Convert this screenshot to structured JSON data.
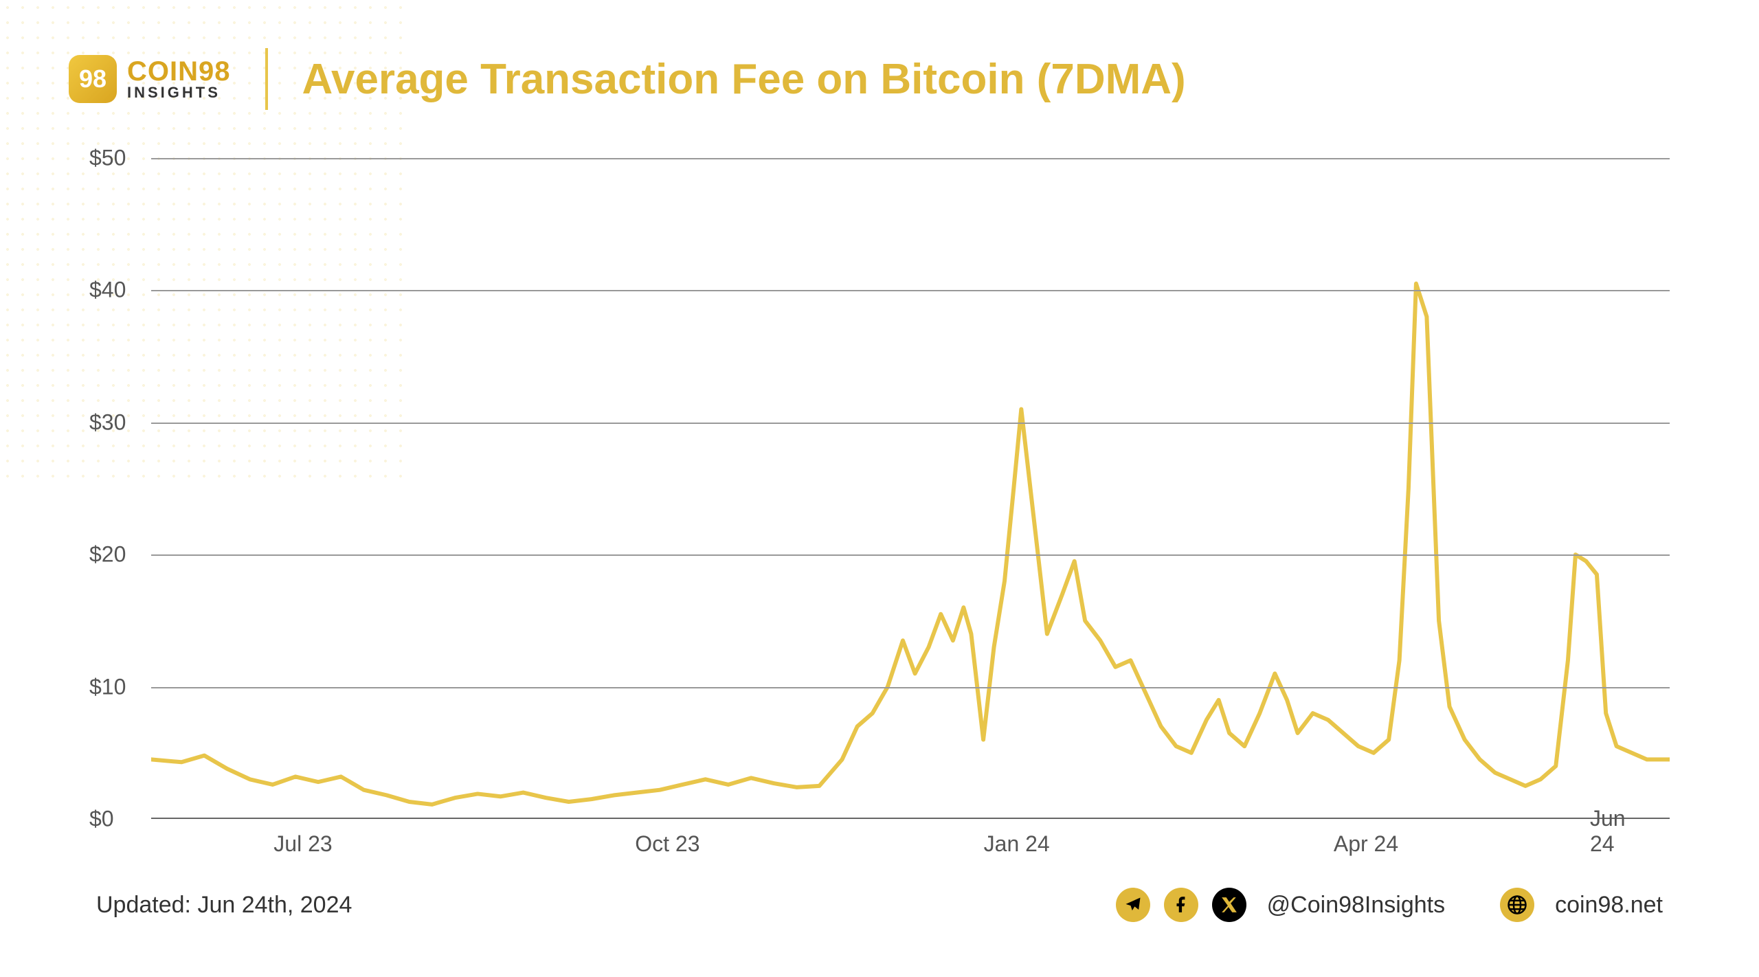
{
  "brand": {
    "logo_glyph": "98",
    "name": "COIN98",
    "sub": "INSIGHTS"
  },
  "chart": {
    "title": "Average Transaction Fee on Bitcoin (7DMA)",
    "type": "line",
    "line_color": "#e8c54a",
    "line_width": 6,
    "grid_color": "#999999",
    "axis_color": "#666666",
    "background": "#ffffff",
    "ylim": [
      0,
      50
    ],
    "ytick_step": 10,
    "yticks": [
      "$0",
      "$10",
      "$20",
      "$30",
      "$40",
      "$50"
    ],
    "xticks": [
      {
        "label": "Jul 23",
        "pos": 0.1
      },
      {
        "label": "Oct 23",
        "pos": 0.34
      },
      {
        "label": "Jan 24",
        "pos": 0.57
      },
      {
        "label": "Apr 24",
        "pos": 0.8
      },
      {
        "label": "Jun 24",
        "pos": 0.965
      }
    ],
    "series": [
      {
        "x": 0.0,
        "y": 4.5
      },
      {
        "x": 0.02,
        "y": 4.3
      },
      {
        "x": 0.035,
        "y": 4.8
      },
      {
        "x": 0.05,
        "y": 3.8
      },
      {
        "x": 0.065,
        "y": 3.0
      },
      {
        "x": 0.08,
        "y": 2.6
      },
      {
        "x": 0.095,
        "y": 3.2
      },
      {
        "x": 0.11,
        "y": 2.8
      },
      {
        "x": 0.125,
        "y": 3.2
      },
      {
        "x": 0.14,
        "y": 2.2
      },
      {
        "x": 0.155,
        "y": 1.8
      },
      {
        "x": 0.17,
        "y": 1.3
      },
      {
        "x": 0.185,
        "y": 1.1
      },
      {
        "x": 0.2,
        "y": 1.6
      },
      {
        "x": 0.215,
        "y": 1.9
      },
      {
        "x": 0.23,
        "y": 1.7
      },
      {
        "x": 0.245,
        "y": 2.0
      },
      {
        "x": 0.26,
        "y": 1.6
      },
      {
        "x": 0.275,
        "y": 1.3
      },
      {
        "x": 0.29,
        "y": 1.5
      },
      {
        "x": 0.305,
        "y": 1.8
      },
      {
        "x": 0.32,
        "y": 2.0
      },
      {
        "x": 0.335,
        "y": 2.2
      },
      {
        "x": 0.35,
        "y": 2.6
      },
      {
        "x": 0.365,
        "y": 3.0
      },
      {
        "x": 0.38,
        "y": 2.6
      },
      {
        "x": 0.395,
        "y": 3.1
      },
      {
        "x": 0.41,
        "y": 2.7
      },
      {
        "x": 0.425,
        "y": 2.4
      },
      {
        "x": 0.44,
        "y": 2.5
      },
      {
        "x": 0.455,
        "y": 4.5
      },
      {
        "x": 0.465,
        "y": 7.0
      },
      {
        "x": 0.475,
        "y": 8.0
      },
      {
        "x": 0.485,
        "y": 10.0
      },
      {
        "x": 0.495,
        "y": 13.5
      },
      {
        "x": 0.503,
        "y": 11.0
      },
      {
        "x": 0.512,
        "y": 13.0
      },
      {
        "x": 0.52,
        "y": 15.5
      },
      {
        "x": 0.528,
        "y": 13.5
      },
      {
        "x": 0.535,
        "y": 16.0
      },
      {
        "x": 0.54,
        "y": 14.0
      },
      {
        "x": 0.548,
        "y": 6.0
      },
      {
        "x": 0.555,
        "y": 13.0
      },
      {
        "x": 0.562,
        "y": 18.0
      },
      {
        "x": 0.568,
        "y": 25.0
      },
      {
        "x": 0.573,
        "y": 31.0
      },
      {
        "x": 0.58,
        "y": 24.0
      },
      {
        "x": 0.59,
        "y": 14.0
      },
      {
        "x": 0.6,
        "y": 17.0
      },
      {
        "x": 0.608,
        "y": 19.5
      },
      {
        "x": 0.615,
        "y": 15.0
      },
      {
        "x": 0.625,
        "y": 13.5
      },
      {
        "x": 0.635,
        "y": 11.5
      },
      {
        "x": 0.645,
        "y": 12.0
      },
      {
        "x": 0.655,
        "y": 9.5
      },
      {
        "x": 0.665,
        "y": 7.0
      },
      {
        "x": 0.675,
        "y": 5.5
      },
      {
        "x": 0.685,
        "y": 5.0
      },
      {
        "x": 0.695,
        "y": 7.5
      },
      {
        "x": 0.703,
        "y": 9.0
      },
      {
        "x": 0.71,
        "y": 6.5
      },
      {
        "x": 0.72,
        "y": 5.5
      },
      {
        "x": 0.73,
        "y": 8.0
      },
      {
        "x": 0.74,
        "y": 11.0
      },
      {
        "x": 0.748,
        "y": 9.0
      },
      {
        "x": 0.755,
        "y": 6.5
      },
      {
        "x": 0.765,
        "y": 8.0
      },
      {
        "x": 0.775,
        "y": 7.5
      },
      {
        "x": 0.785,
        "y": 6.5
      },
      {
        "x": 0.795,
        "y": 5.5
      },
      {
        "x": 0.805,
        "y": 5.0
      },
      {
        "x": 0.815,
        "y": 6.0
      },
      {
        "x": 0.822,
        "y": 12.0
      },
      {
        "x": 0.828,
        "y": 25.0
      },
      {
        "x": 0.833,
        "y": 40.5
      },
      {
        "x": 0.84,
        "y": 38.0
      },
      {
        "x": 0.848,
        "y": 15.0
      },
      {
        "x": 0.855,
        "y": 8.5
      },
      {
        "x": 0.865,
        "y": 6.0
      },
      {
        "x": 0.875,
        "y": 4.5
      },
      {
        "x": 0.885,
        "y": 3.5
      },
      {
        "x": 0.895,
        "y": 3.0
      },
      {
        "x": 0.905,
        "y": 2.5
      },
      {
        "x": 0.915,
        "y": 3.0
      },
      {
        "x": 0.925,
        "y": 4.0
      },
      {
        "x": 0.933,
        "y": 12.0
      },
      {
        "x": 0.938,
        "y": 20.0
      },
      {
        "x": 0.945,
        "y": 19.5
      },
      {
        "x": 0.952,
        "y": 18.5
      },
      {
        "x": 0.958,
        "y": 8.0
      },
      {
        "x": 0.965,
        "y": 5.5
      },
      {
        "x": 0.975,
        "y": 5.0
      },
      {
        "x": 0.985,
        "y": 4.5
      },
      {
        "x": 1.0,
        "y": 4.5
      }
    ]
  },
  "footer": {
    "updated": "Updated: Jun 24th, 2024",
    "handle": "@Coin98Insights",
    "website": "coin98.net"
  }
}
